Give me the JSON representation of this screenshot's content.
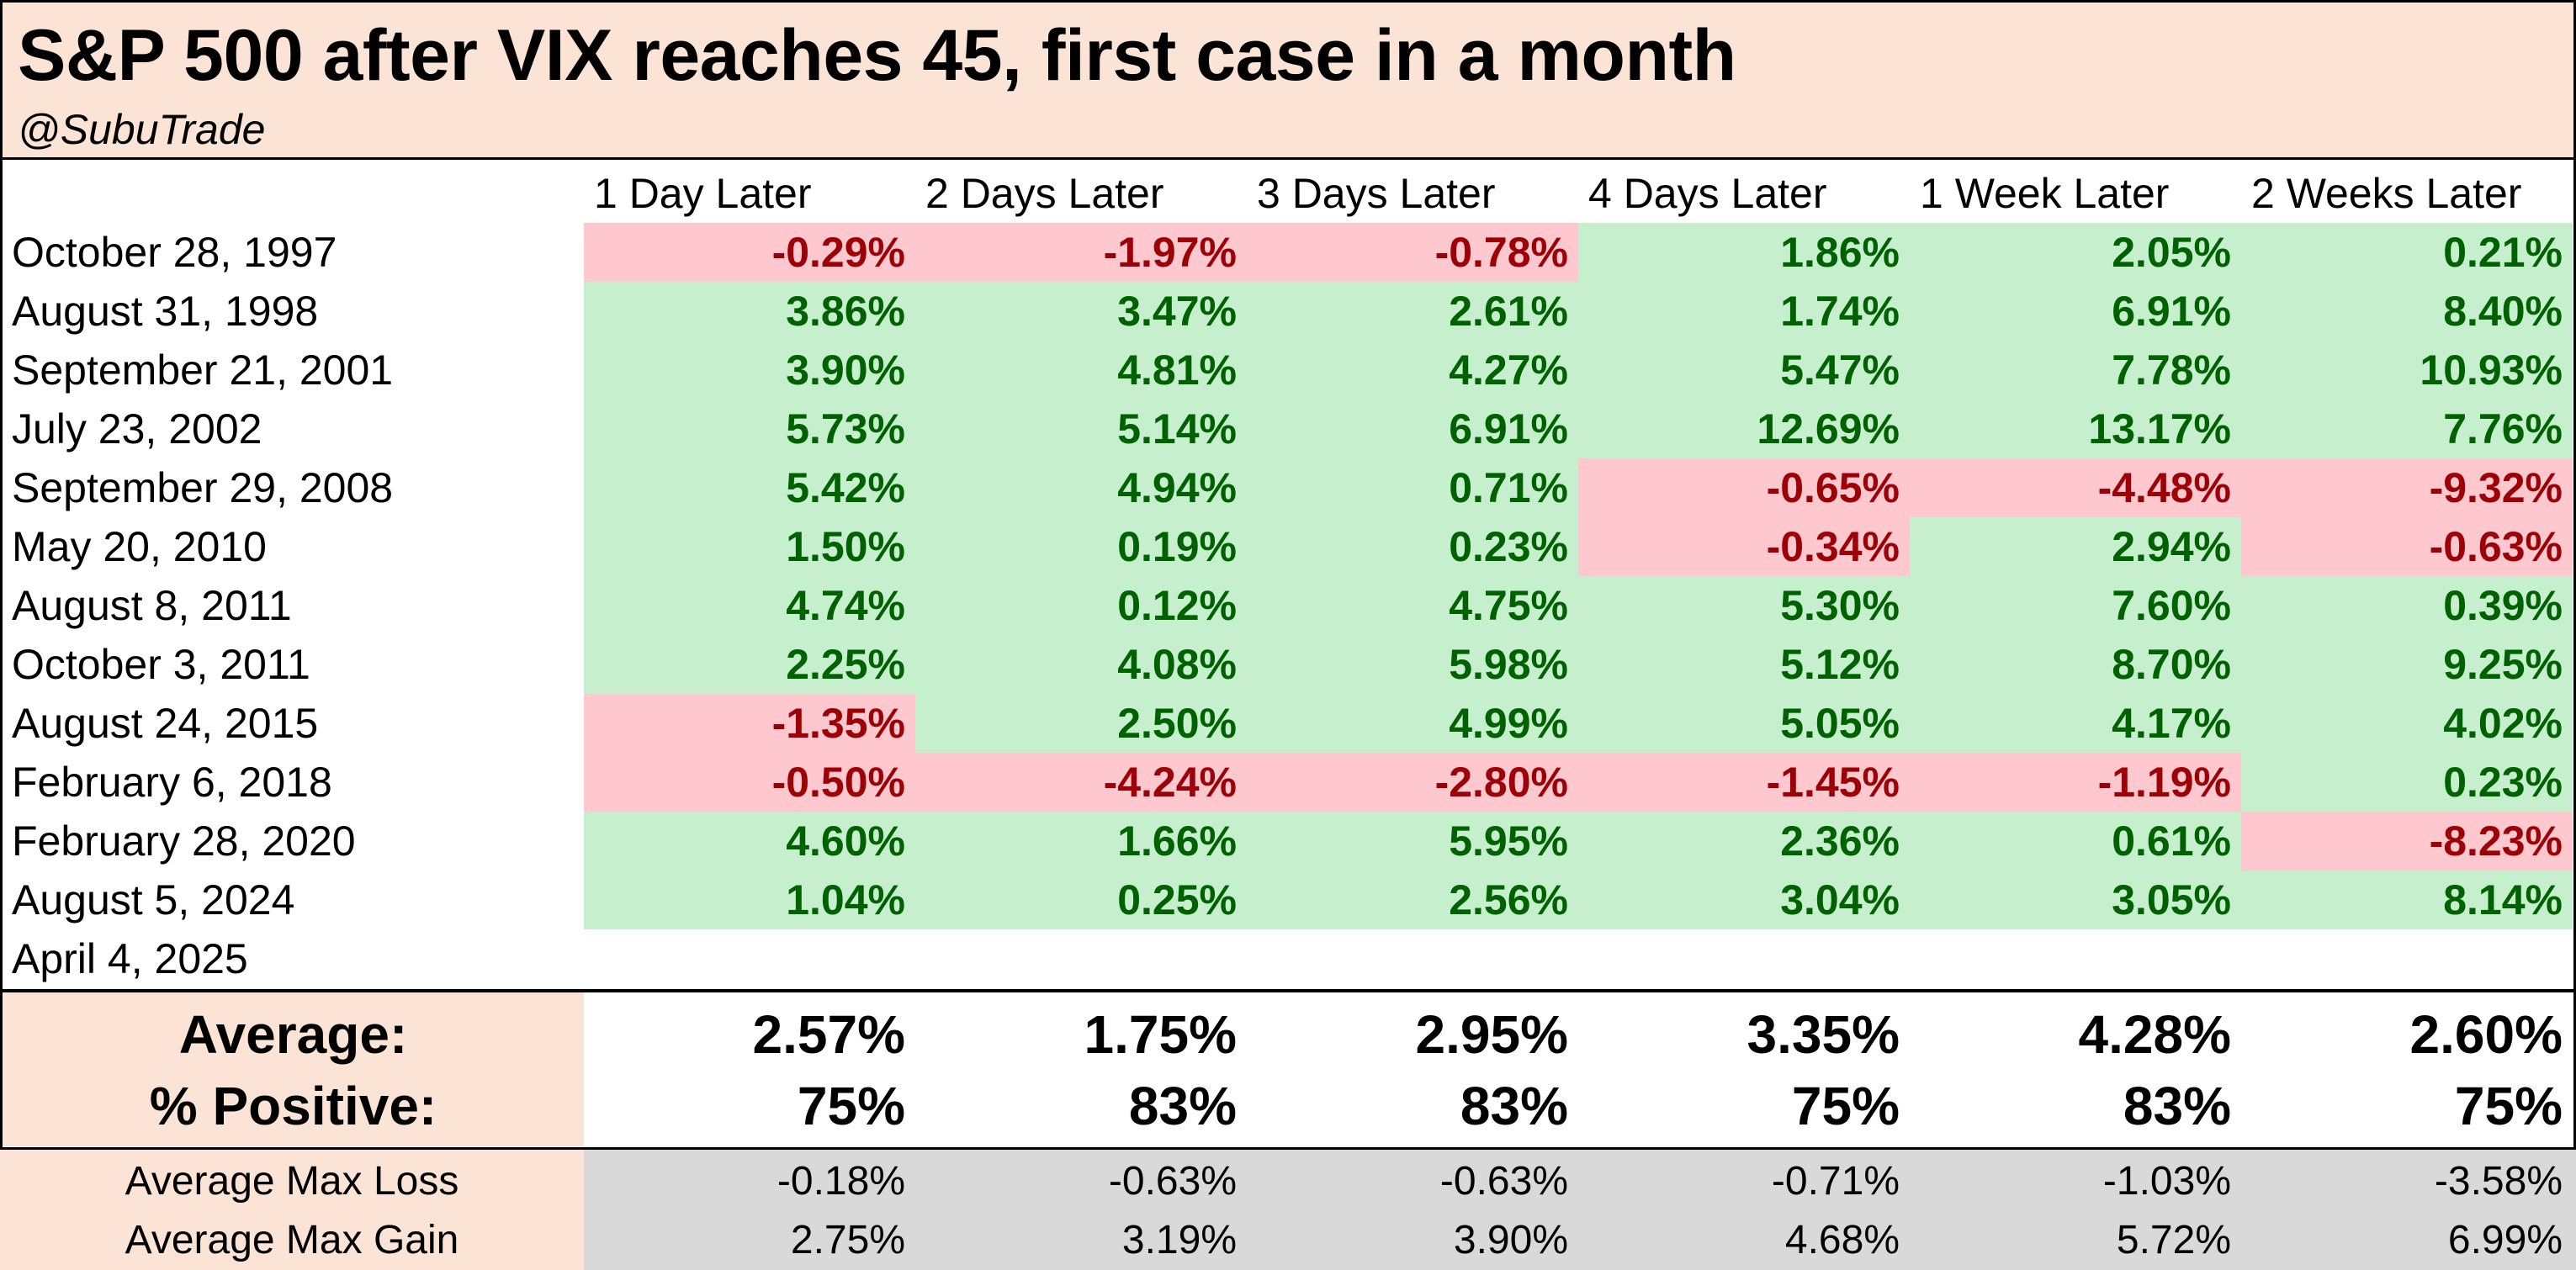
{
  "chart_data": {
    "type": "table",
    "title": "S&P 500 after VIX reaches 45, first case in a month",
    "subtitle": "@SubuTrade",
    "columns": [
      "1 Day Later",
      "2 Days Later",
      "3 Days Later",
      "4 Days Later",
      "1 Week Later",
      "2 Weeks Later"
    ],
    "rows": [
      {
        "date": "October 28, 1997",
        "values": [
          "-0.29%",
          "-1.97%",
          "-0.78%",
          "1.86%",
          "2.05%",
          "0.21%"
        ]
      },
      {
        "date": "August 31, 1998",
        "values": [
          "3.86%",
          "3.47%",
          "2.61%",
          "1.74%",
          "6.91%",
          "8.40%"
        ]
      },
      {
        "date": "September 21, 2001",
        "values": [
          "3.90%",
          "4.81%",
          "4.27%",
          "5.47%",
          "7.78%",
          "10.93%"
        ]
      },
      {
        "date": "July 23, 2002",
        "values": [
          "5.73%",
          "5.14%",
          "6.91%",
          "12.69%",
          "13.17%",
          "7.76%"
        ]
      },
      {
        "date": "September 29, 2008",
        "values": [
          "5.42%",
          "4.94%",
          "0.71%",
          "-0.65%",
          "-4.48%",
          "-9.32%"
        ]
      },
      {
        "date": "May 20, 2010",
        "values": [
          "1.50%",
          "0.19%",
          "0.23%",
          "-0.34%",
          "2.94%",
          "-0.63%"
        ]
      },
      {
        "date": "August 8, 2011",
        "values": [
          "4.74%",
          "0.12%",
          "4.75%",
          "5.30%",
          "7.60%",
          "0.39%"
        ]
      },
      {
        "date": "October 3, 2011",
        "values": [
          "2.25%",
          "4.08%",
          "5.98%",
          "5.12%",
          "8.70%",
          "9.25%"
        ]
      },
      {
        "date": "August 24, 2015",
        "values": [
          "-1.35%",
          "2.50%",
          "4.99%",
          "5.05%",
          "4.17%",
          "4.02%"
        ]
      },
      {
        "date": "February 6, 2018",
        "values": [
          "-0.50%",
          "-4.24%",
          "-2.80%",
          "-1.45%",
          "-1.19%",
          "0.23%"
        ]
      },
      {
        "date": "February 28, 2020",
        "values": [
          "4.60%",
          "1.66%",
          "5.95%",
          "2.36%",
          "0.61%",
          "-8.23%"
        ]
      },
      {
        "date": "August 5, 2024",
        "values": [
          "1.04%",
          "0.25%",
          "2.56%",
          "3.04%",
          "3.05%",
          "8.14%"
        ]
      },
      {
        "date": "April 4, 2025",
        "values": [
          "",
          "",
          "",
          "",
          "",
          ""
        ]
      }
    ],
    "summary": [
      {
        "label": "Average:",
        "values": [
          "2.57%",
          "1.75%",
          "2.95%",
          "3.35%",
          "4.28%",
          "2.60%"
        ]
      },
      {
        "label": "% Positive:",
        "values": [
          "75%",
          "83%",
          "83%",
          "75%",
          "83%",
          "75%"
        ]
      }
    ],
    "bottom": [
      {
        "label": "Average Max Loss",
        "values": [
          "-0.18%",
          "-0.63%",
          "-0.63%",
          "-0.71%",
          "-1.03%",
          "-3.58%"
        ]
      },
      {
        "label": "Average Max Gain",
        "values": [
          "2.75%",
          "3.19%",
          "3.90%",
          "4.68%",
          "5.72%",
          "6.99%"
        ]
      }
    ]
  },
  "colors": {
    "header_band": "#fbe4d5",
    "positive_fill": "#c6efce",
    "positive_text": "#006100",
    "negative_fill": "#ffc7ce",
    "negative_text": "#9c0006",
    "bottom_fill": "#d9d9d9"
  }
}
